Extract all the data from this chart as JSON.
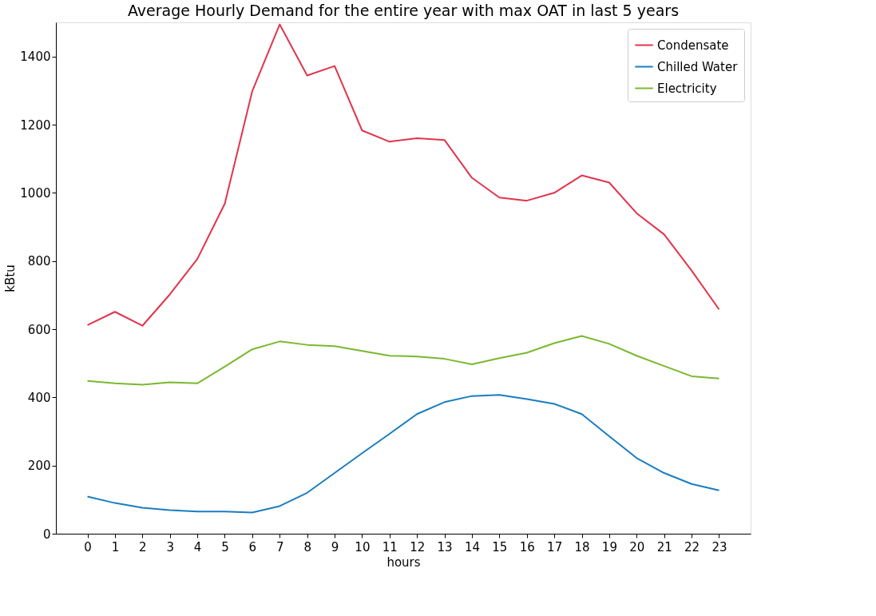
{
  "chart_data": {
    "type": "line",
    "title": "Average Hourly Demand for the entire year with max OAT in last 5 years",
    "xlabel": "hours",
    "ylabel": "kBtu",
    "x": [
      0,
      1,
      2,
      3,
      4,
      5,
      6,
      7,
      8,
      9,
      10,
      11,
      12,
      13,
      14,
      15,
      16,
      17,
      18,
      19,
      20,
      21,
      22,
      23
    ],
    "series": [
      {
        "name": "Condensate",
        "color": "#e2344c",
        "values": [
          612,
          651,
          610,
          702,
          806,
          968,
          1298,
          1494,
          1344,
          1372,
          1183,
          1150,
          1160,
          1155,
          1044,
          986,
          977,
          1000,
          1051,
          1030,
          940,
          878,
          772,
          658
        ]
      },
      {
        "name": "Chilled Water",
        "color": "#1a7dc0",
        "values": [
          109,
          90,
          76,
          69,
          65,
          65,
          62,
          81,
          120,
          178,
          236,
          293,
          351,
          386,
          404,
          407,
          395,
          381,
          351,
          286,
          222,
          178,
          146,
          127
        ]
      },
      {
        "name": "Electricity",
        "color": "#7ab82e",
        "values": [
          448,
          441,
          437,
          444,
          441,
          490,
          541,
          564,
          554,
          550,
          536,
          522,
          520,
          513,
          497,
          515,
          531,
          559,
          580,
          557,
          522,
          492,
          462,
          455
        ]
      }
    ],
    "xlim": [
      -1.15,
      24.15
    ],
    "xticks": [
      0,
      1,
      2,
      3,
      4,
      5,
      6,
      7,
      8,
      9,
      10,
      11,
      12,
      13,
      14,
      15,
      16,
      17,
      18,
      19,
      20,
      21,
      22,
      23
    ],
    "ylim": [
      0,
      1500
    ],
    "yticks": [
      0,
      200,
      400,
      600,
      800,
      1000,
      1200,
      1400
    ],
    "grid": false,
    "legend": "top right",
    "marker": "none",
    "line_style": "solid"
  }
}
